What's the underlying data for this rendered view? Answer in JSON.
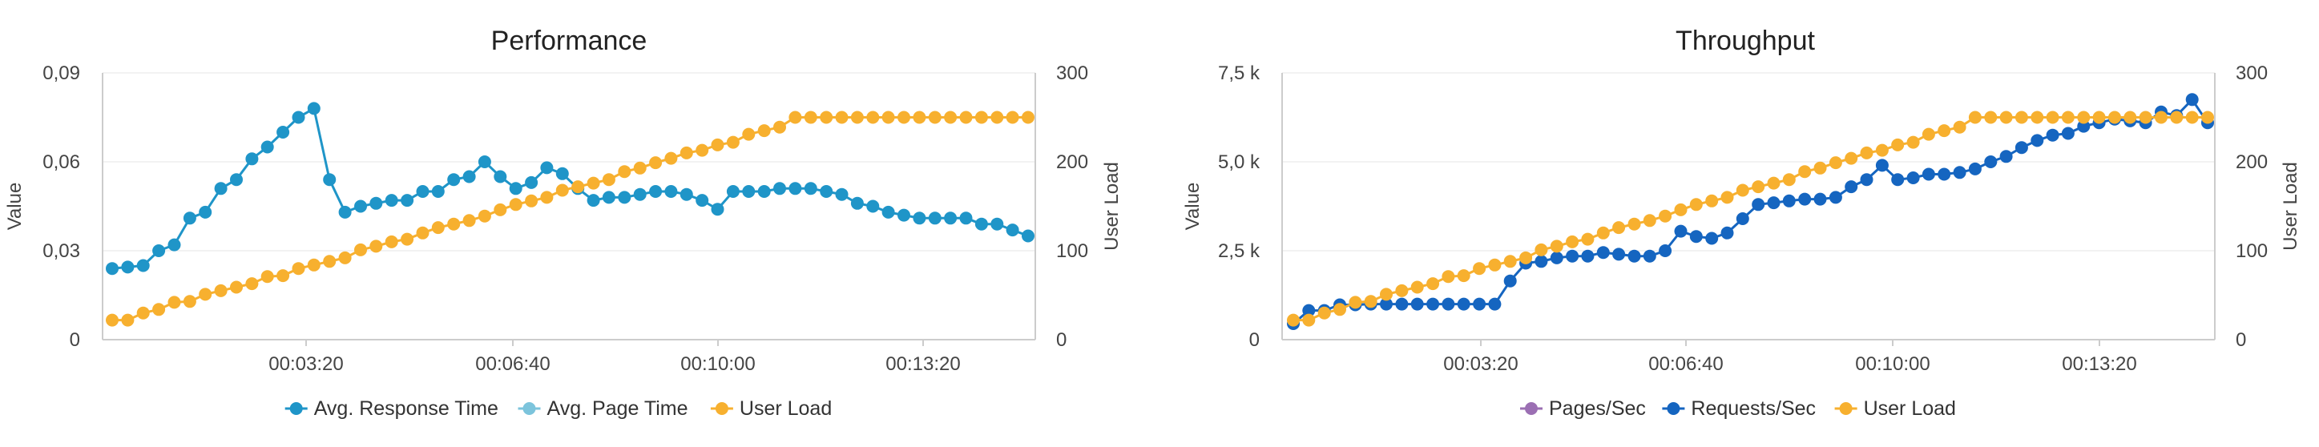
{
  "chart_data": [
    {
      "type": "line",
      "title": "Performance",
      "xlabel": "",
      "ylabel": "Value",
      "y2label": "User Load",
      "x_ticks": [
        "00:03:20",
        "00:06:40",
        "00:10:00",
        "00:13:20"
      ],
      "y_ticks": [
        "0",
        "0,03",
        "0,06",
        "0,09"
      ],
      "y2_ticks": [
        "0",
        "100",
        "200",
        "300"
      ],
      "ylim": [
        0,
        0.09
      ],
      "y2lim": [
        0,
        300
      ],
      "grid": true,
      "legend": "bottom-center",
      "series": [
        {
          "name": "Avg. Response Time",
          "color": "#1f95c8",
          "axis": "left",
          "values": [
            0.024,
            0.0245,
            0.025,
            0.03,
            0.032,
            0.041,
            0.043,
            0.051,
            0.054,
            0.061,
            0.065,
            0.07,
            0.075,
            0.078,
            0.054,
            0.043,
            0.045,
            0.046,
            0.047,
            0.047,
            0.05,
            0.05,
            0.054,
            0.055,
            0.06,
            0.055,
            0.051,
            0.053,
            0.058,
            0.056,
            0.051,
            0.047,
            0.048,
            0.048,
            0.049,
            0.05,
            0.05,
            0.049,
            0.047,
            0.044,
            0.05,
            0.05,
            0.05,
            0.051,
            0.051,
            0.051,
            0.05,
            0.049,
            0.046,
            0.045,
            0.043,
            0.042,
            0.041,
            0.041,
            0.041,
            0.041,
            0.039,
            0.039,
            0.037,
            0.035
          ]
        },
        {
          "name": "Avg. Page Time",
          "color": "#7cc4dc",
          "axis": "left",
          "values": []
        },
        {
          "name": "User Load",
          "color": "#f7b02f",
          "axis": "right",
          "values": [
            22,
            22,
            30,
            34,
            42,
            43,
            51,
            55,
            59,
            63,
            71,
            72,
            80,
            84,
            88,
            92,
            101,
            105,
            110,
            113,
            120,
            126,
            130,
            134,
            139,
            146,
            152,
            156,
            160,
            168,
            172,
            176,
            180,
            189,
            193,
            199,
            204,
            210,
            213,
            219,
            222,
            231,
            235,
            239,
            250,
            250,
            250,
            250,
            250,
            250,
            250,
            250,
            250,
            250,
            250,
            250,
            250,
            250,
            250,
            250
          ]
        }
      ]
    },
    {
      "type": "line",
      "title": "Throughput",
      "xlabel": "",
      "ylabel": "Value",
      "y2label": "User Load",
      "x_ticks": [
        "00:03:20",
        "00:06:40",
        "00:10:00",
        "00:13:20"
      ],
      "y_ticks": [
        "0",
        "2,5 k",
        "5,0 k",
        "7,5 k"
      ],
      "y2_ticks": [
        "0",
        "100",
        "200",
        "300"
      ],
      "ylim": [
        0,
        7500
      ],
      "y2lim": [
        0,
        300
      ],
      "grid": true,
      "legend": "bottom-center",
      "series": [
        {
          "name": "Pages/Sec",
          "color": "#9b6fb3",
          "axis": "left",
          "values": []
        },
        {
          "name": "Requests/Sec",
          "color": "#1565c0",
          "axis": "left",
          "values": [
            450,
            820,
            820,
            980,
            980,
            1000,
            1000,
            1000,
            1000,
            1000,
            1000,
            1000,
            1000,
            1000,
            1650,
            2150,
            2200,
            2300,
            2350,
            2350,
            2450,
            2400,
            2350,
            2350,
            2500,
            3050,
            2900,
            2850,
            3000,
            3400,
            3800,
            3850,
            3900,
            3950,
            3950,
            4000,
            4300,
            4500,
            4900,
            4500,
            4550,
            4650,
            4650,
            4700,
            4800,
            5000,
            5150,
            5400,
            5600,
            5750,
            5800,
            6000,
            6100,
            6200,
            6150,
            6100,
            6400,
            6300,
            6750,
            6100
          ]
        },
        {
          "name": "User Load",
          "color": "#f7b02f",
          "axis": "right",
          "values": [
            22,
            22,
            30,
            34,
            42,
            43,
            51,
            55,
            59,
            63,
            71,
            72,
            80,
            84,
            88,
            92,
            101,
            105,
            110,
            113,
            120,
            126,
            130,
            134,
            139,
            146,
            152,
            156,
            160,
            168,
            172,
            176,
            180,
            189,
            193,
            199,
            204,
            210,
            213,
            219,
            222,
            231,
            235,
            239,
            250,
            250,
            250,
            250,
            250,
            250,
            250,
            250,
            250,
            250,
            250,
            250,
            250,
            250,
            250,
            250
          ]
        }
      ]
    }
  ]
}
